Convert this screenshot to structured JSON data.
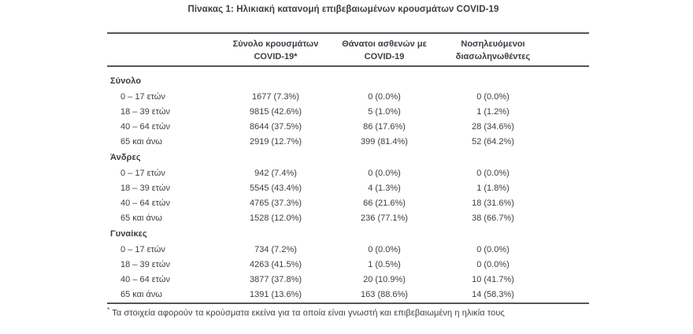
{
  "title": "Πίνακας 1: Ηλικιακή κατανομή επιβεβαιωμένων κρουσμάτων COVID-19",
  "colors": {
    "text": "#3c4044",
    "rule": "#53565c",
    "background": "#ffffff"
  },
  "table": {
    "columns": [
      {
        "line1": "Σύνολο κρουσμάτων",
        "line2": "COVID-19*"
      },
      {
        "line1": "Θάνατοι ασθενών με",
        "line2": "COVID-19"
      },
      {
        "line1": "Νοσηλευόμενοι",
        "line2": "διασωληνωθέντες"
      }
    ],
    "sections": [
      {
        "label": "Σύνολο",
        "rows": [
          {
            "label": "0 – 17 ετών",
            "cases": "1677 (7.3%)",
            "deaths": "0 (0.0%)",
            "intubated": "0 (0.0%)"
          },
          {
            "label": "18 – 39 ετών",
            "cases": "9815 (42.6%)",
            "deaths": "5 (1.0%)",
            "intubated": "1 (1.2%)"
          },
          {
            "label": "40 – 64 ετών",
            "cases": "8644 (37.5%)",
            "deaths": "86 (17.6%)",
            "intubated": "28 (34.6%)"
          },
          {
            "label": "65 και άνω",
            "cases": "2919 (12.7%)",
            "deaths": "399 (81.4%)",
            "intubated": "52 (64.2%)"
          }
        ]
      },
      {
        "label": "Άνδρες",
        "rows": [
          {
            "label": "0 – 17 ετών",
            "cases": "942 (7.4%)",
            "deaths": "0 (0.0%)",
            "intubated": "0 (0.0%)"
          },
          {
            "label": "18 – 39 ετών",
            "cases": "5545 (43.4%)",
            "deaths": "4 (1.3%)",
            "intubated": "1 (1.8%)"
          },
          {
            "label": "40 – 64 ετών",
            "cases": "4765 (37.3%)",
            "deaths": "66 (21.6%)",
            "intubated": "18 (31.6%)"
          },
          {
            "label": "65 και άνω",
            "cases": "1528 (12.0%)",
            "deaths": "236 (77.1%)",
            "intubated": "38 (66.7%)"
          }
        ]
      },
      {
        "label": "Γυναίκες",
        "rows": [
          {
            "label": "0 – 17 ετών",
            "cases": "734 (7.2%)",
            "deaths": "0 (0.0%)",
            "intubated": "0 (0.0%)"
          },
          {
            "label": "18 – 39 ετών",
            "cases": "4263 (41.5%)",
            "deaths": "1 (0.5%)",
            "intubated": "0 (0.0%)"
          },
          {
            "label": "40 – 64 ετών",
            "cases": "3877 (37.8%)",
            "deaths": "20 (10.9%)",
            "intubated": "10 (41.7%)"
          },
          {
            "label": "65 και άνω",
            "cases": "1391 (13.6%)",
            "deaths": "163 (88.6%)",
            "intubated": "14 (58.3%)"
          }
        ]
      }
    ]
  },
  "footnote": {
    "marker": "*",
    "text": "Τα στοιχεία αφορούν τα κρούσματα εκείνα για τα οποία είναι γνωστή και επιβεβαιωμένη η ηλικία τους"
  }
}
